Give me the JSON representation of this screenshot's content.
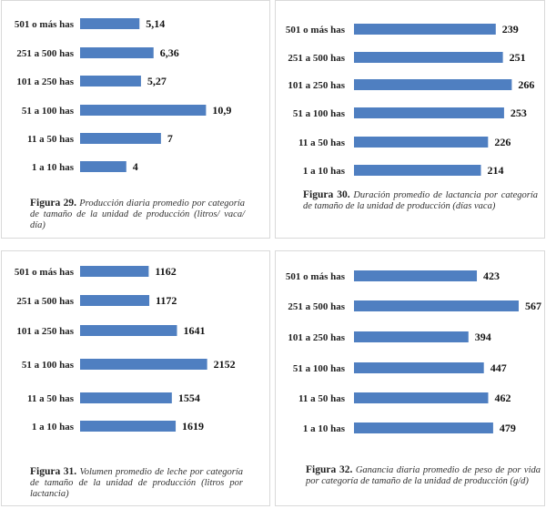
{
  "chart_data": [
    {
      "type": "bar",
      "orientation": "horizontal",
      "categories": [
        "501 o más has",
        "251 a 500 has",
        "101 a 250 has",
        "51 a 100 has",
        "11 a 50 has",
        "1 a 10 has"
      ],
      "values": [
        5.14,
        6.36,
        5.27,
        10.9,
        7,
        4
      ],
      "value_labels": [
        "5,14",
        "6,36",
        "5,27",
        "10,9",
        "7",
        "4"
      ],
      "color": "#4f7fc1",
      "caption_label": "Figura 29.",
      "caption_text": "Producción diaria promedio por categoría de tamaño de la unidad de producción (litros/ vaca/ día)",
      "xlim": [
        0,
        11.5
      ]
    },
    {
      "type": "bar",
      "orientation": "horizontal",
      "categories": [
        "501 o más has",
        "251 a 500 has",
        "101 a 250 has",
        "51 a 100 has",
        "11 a 50 has",
        "1 a 10 has"
      ],
      "values": [
        239,
        251,
        266,
        253,
        226,
        214
      ],
      "value_labels": [
        "239",
        "251",
        "266",
        "253",
        "226",
        "214"
      ],
      "color": "#4f7fc1",
      "caption_label": "Figura 30.",
      "caption_text": "Duración promedio de lactancia por categoría de tamaño de la unidad de producción (días vaca)",
      "xlim": [
        0,
        270
      ]
    },
    {
      "type": "bar",
      "orientation": "horizontal",
      "categories": [
        "501 o más has",
        "251 a 500 has",
        "101 a 250 has",
        "51 a 100 has",
        "11 a 50 has",
        "1 a 10 has"
      ],
      "values": [
        1162,
        1172,
        1641,
        2152,
        1554,
        1619
      ],
      "value_labels": [
        "1162",
        "1172",
        "1641",
        "2152",
        "1554",
        "1619"
      ],
      "color": "#4f7fc1",
      "caption_label": "Figura 31.",
      "caption_text": "Volumen promedio de leche por categoría de tamaño de la unidad de producción (litros por lactancia)",
      "xlim": [
        0,
        2250
      ]
    },
    {
      "type": "bar",
      "orientation": "horizontal",
      "categories": [
        "501 o más has",
        "251 a 500 has",
        "101 a 250 has",
        "51 a 100 has",
        "11 a 50 has",
        "1 a 10 has"
      ],
      "values": [
        423,
        567,
        394,
        447,
        462,
        479
      ],
      "value_labels": [
        "423",
        "567",
        "394",
        "447",
        "462",
        "479"
      ],
      "color": "#4f7fc1",
      "caption_label": "Figura 32.",
      "caption_text": "Ganancia diaria promedio de peso de por vida por categoría de tamaño de la unidad de producción (g/d)",
      "xlim": [
        0,
        567
      ]
    }
  ]
}
